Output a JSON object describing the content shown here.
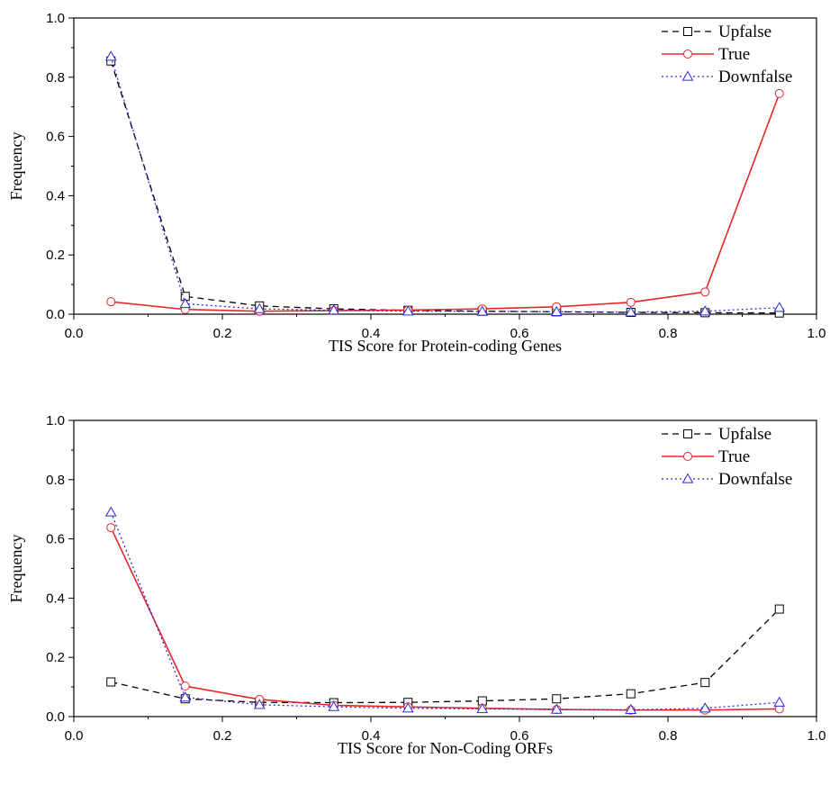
{
  "chart_data": [
    {
      "type": "line",
      "xlabel": "TIS Score for Protein-coding Genes",
      "ylabel": "Frequency",
      "xlim": [
        0.0,
        1.0
      ],
      "ylim": [
        0.0,
        1.0
      ],
      "xticks": [
        "0.0",
        "0.2",
        "0.4",
        "0.6",
        "0.8",
        "1.0"
      ],
      "yticks": [
        "0.0",
        "0.2",
        "0.4",
        "0.6",
        "0.8",
        "1.0"
      ],
      "legend_position": "top-right",
      "x": [
        0.05,
        0.15,
        0.25,
        0.35,
        0.45,
        0.55,
        0.65,
        0.75,
        0.85,
        0.95
      ],
      "series": [
        {
          "name": "Upfalse",
          "color": "#000000",
          "dash": "dashed",
          "marker": "square",
          "values": [
            0.855,
            0.06,
            0.028,
            0.018,
            0.013,
            0.01,
            0.008,
            0.006,
            0.005,
            0.004
          ]
        },
        {
          "name": "True",
          "color": "#e8262a",
          "dash": "solid",
          "marker": "circle",
          "values": [
            0.042,
            0.016,
            0.01,
            0.012,
            0.014,
            0.018,
            0.025,
            0.04,
            0.075,
            0.745
          ]
        },
        {
          "name": "Downfalse",
          "color": "#2b2bd8",
          "dash": "dotted",
          "marker": "triangle",
          "values": [
            0.87,
            0.035,
            0.018,
            0.013,
            0.01,
            0.009,
            0.008,
            0.007,
            0.01,
            0.022
          ]
        }
      ]
    },
    {
      "type": "line",
      "xlabel": "TIS Score for Non-Coding ORFs",
      "ylabel": "Frequency",
      "xlim": [
        0.0,
        1.0
      ],
      "ylim": [
        0.0,
        1.0
      ],
      "xticks": [
        "0.0",
        "0.2",
        "0.4",
        "0.6",
        "0.8",
        "1.0"
      ],
      "yticks": [
        "0.0",
        "0.2",
        "0.4",
        "0.6",
        "0.8",
        "1.0"
      ],
      "legend_position": "top-right",
      "x": [
        0.05,
        0.15,
        0.25,
        0.35,
        0.45,
        0.55,
        0.65,
        0.75,
        0.85,
        0.95
      ],
      "series": [
        {
          "name": "Upfalse",
          "color": "#000000",
          "dash": "dashed",
          "marker": "square",
          "values": [
            0.117,
            0.06,
            0.048,
            0.047,
            0.048,
            0.053,
            0.06,
            0.077,
            0.115,
            0.363
          ]
        },
        {
          "name": "True",
          "color": "#e8262a",
          "dash": "solid",
          "marker": "circle",
          "values": [
            0.638,
            0.103,
            0.058,
            0.038,
            0.033,
            0.028,
            0.024,
            0.022,
            0.022,
            0.026
          ]
        },
        {
          "name": "Downfalse",
          "color": "#2b2bd8",
          "dash": "dotted",
          "marker": "triangle",
          "values": [
            0.69,
            0.065,
            0.04,
            0.033,
            0.028,
            0.026,
            0.024,
            0.023,
            0.028,
            0.048
          ]
        }
      ]
    }
  ]
}
